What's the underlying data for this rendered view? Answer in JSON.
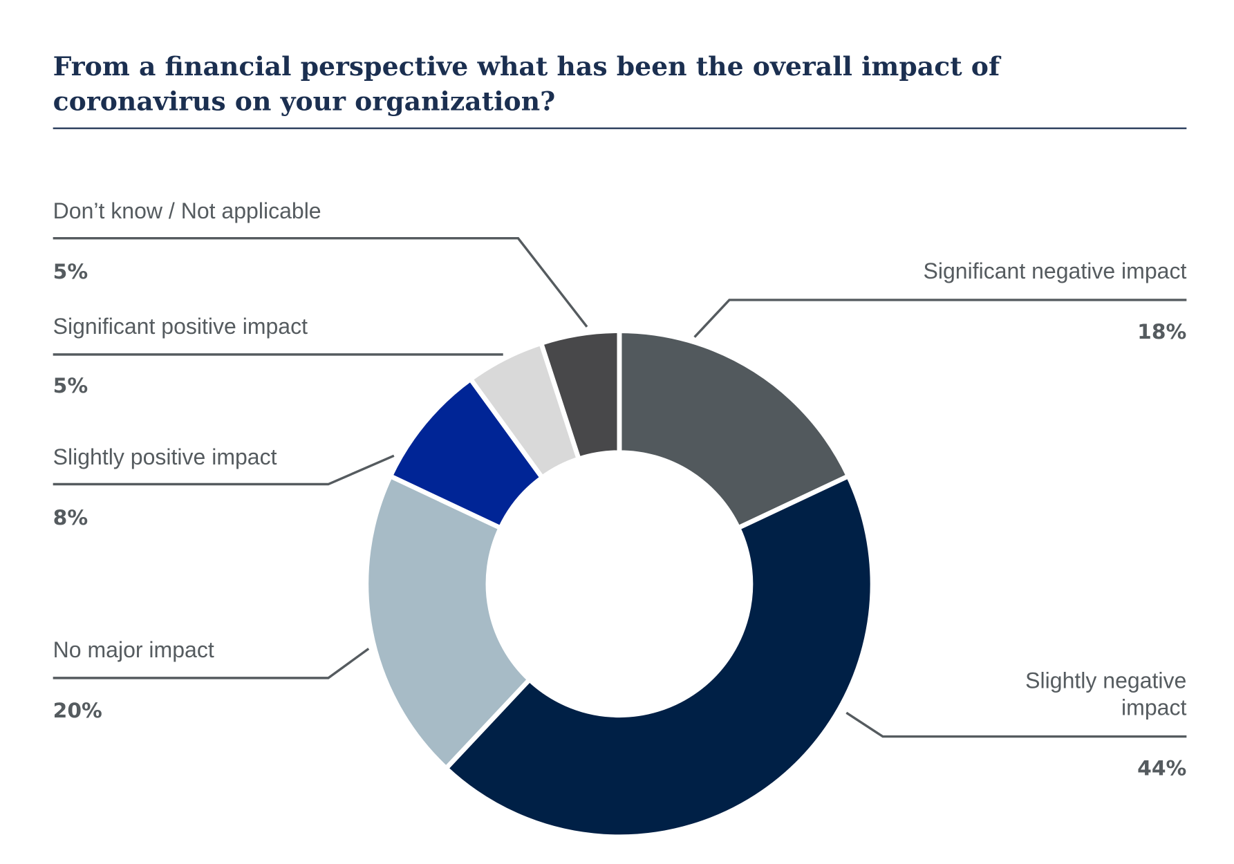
{
  "chart_data": {
    "type": "pie",
    "subtype": "donut",
    "title_lines": [
      "From a financial perspective  what has been the overall impact of",
      "coronavirus on your organization?"
    ],
    "slices": [
      {
        "label": "Significant negative impact",
        "label_lines": [
          "Significant negative impact"
        ],
        "value": 18,
        "display": "18%",
        "color": "#52595d"
      },
      {
        "label": "Slightly negative impact",
        "label_lines": [
          "Slightly negative",
          "impact"
        ],
        "value": 44,
        "display": "44%",
        "color": "#002046"
      },
      {
        "label": "No major impact",
        "label_lines": [
          "No major impact"
        ],
        "value": 20,
        "display": "20%",
        "color": "#a7bbc6"
      },
      {
        "label": "Slightly positive impact",
        "label_lines": [
          "Slightly positive impact"
        ],
        "value": 8,
        "display": "8%",
        "color": "#002596"
      },
      {
        "label": "Significant positive impact",
        "label_lines": [
          "Significant positive impact"
        ],
        "value": 5,
        "display": "5%",
        "color": "#d9d9d9"
      },
      {
        "label": "Don’t know / Not applicable",
        "label_lines": [
          "Don’t know / Not applicable"
        ],
        "value": 5,
        "display": "5%",
        "color": "#48484a"
      }
    ],
    "start": "top",
    "direction": "clockwise",
    "legend": "none"
  }
}
